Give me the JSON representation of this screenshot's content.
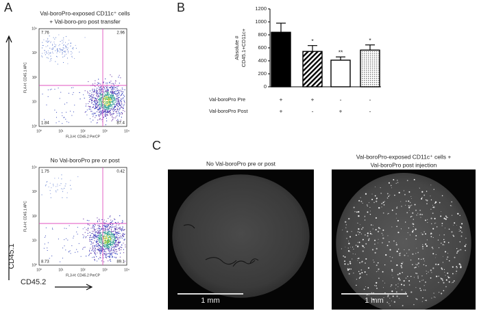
{
  "panels": {
    "A": {
      "label": "A",
      "y_axis_title": "CD45.1",
      "x_axis_title": "CD45.2",
      "plots": [
        {
          "title": [
            "Val-boroPro-exposed CD11c⁺ cells",
            "+ Val-boro-pro post transfer"
          ],
          "x_label": "FL3-H: CD45.2 PerCP",
          "y_label": "FL4-H: CD45.1 APC",
          "ticks": [
            "10⁰",
            "10¹",
            "10²",
            "10³",
            "10⁴"
          ],
          "quadrants": [
            "7.76",
            "2.96",
            "1.84",
            "87.4"
          ]
        },
        {
          "title": [
            "No Val-boroPro pre or post"
          ],
          "x_label": "FL3-H: CD45.2 PerCP",
          "y_label": "FL4-H: CD45.1 APC",
          "ticks": [
            "10⁰",
            "10¹",
            "10²",
            "10³",
            "10⁴"
          ],
          "quadrants": [
            "1.75",
            "0.42",
            "8.73",
            "89.1"
          ]
        }
      ]
    },
    "C": {
      "label": "C",
      "images": [
        {
          "title": [
            "No Val-boroPro pre or post"
          ],
          "scale_bar": "1 mm"
        },
        {
          "title": [
            "Val-boroPro-exposed CD11c⁺ cells +",
            "Val-boroPro post injection"
          ],
          "scale_bar": "1 mm"
        }
      ]
    }
  },
  "chart_data": {
    "type": "bar",
    "panel_label": "B",
    "y_label": [
      "Absolute #",
      "CD45.1+CD11c+"
    ],
    "categories": [
      null,
      null,
      null,
      null
    ],
    "values": [
      840,
      545,
      410,
      565
    ],
    "errors": [
      140,
      90,
      50,
      80
    ],
    "significance": [
      null,
      "*",
      "**",
      "*"
    ],
    "ylim": [
      0,
      1200
    ],
    "yticks": [
      0,
      200,
      400,
      600,
      800,
      1000,
      1200
    ],
    "color": "#000000",
    "condition_rows": [
      {
        "label": "Val-boroPro Pre",
        "signs": [
          "+",
          "+",
          "-",
          "-"
        ]
      },
      {
        "label": "Val-boroPro Post",
        "signs": [
          "+",
          "-",
          "+",
          "-"
        ]
      }
    ]
  }
}
